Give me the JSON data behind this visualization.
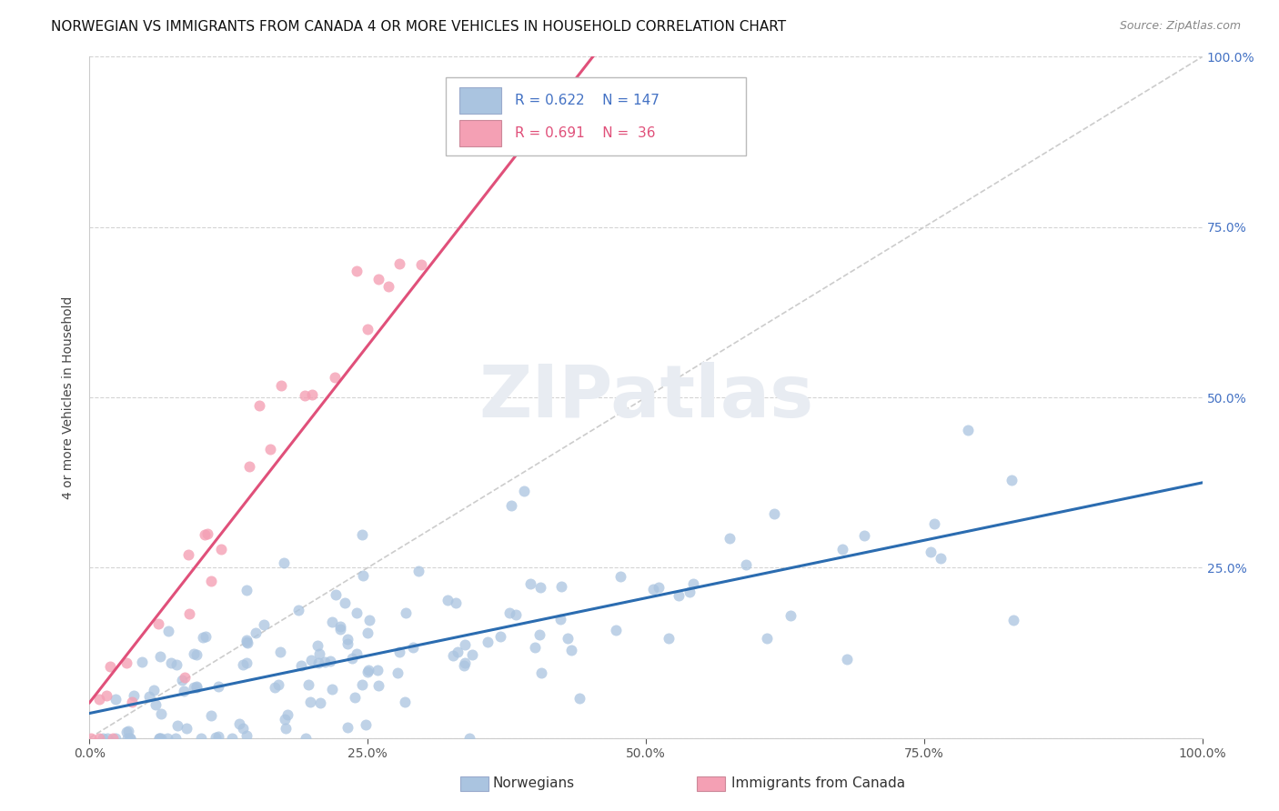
{
  "title": "NORWEGIAN VS IMMIGRANTS FROM CANADA 4 OR MORE VEHICLES IN HOUSEHOLD CORRELATION CHART",
  "source": "Source: ZipAtlas.com",
  "ylabel": "4 or more Vehicles in Household",
  "norwegian_R": 0.622,
  "norwegian_N": 147,
  "canada_R": 0.691,
  "canada_N": 36,
  "norwegian_color": "#aac4e0",
  "canada_color": "#f4a0b4",
  "norwegian_line_color": "#2b6cb0",
  "canada_line_color": "#e0507a",
  "diagonal_color": "#cccccc",
  "right_tick_color": "#4472c4",
  "watermark_text": "ZIPatlas",
  "watermark_color": "#e8ecf2",
  "title_fontsize": 11,
  "source_fontsize": 9,
  "axis_label_fontsize": 10,
  "tick_fontsize": 10,
  "legend_fontsize": 11
}
